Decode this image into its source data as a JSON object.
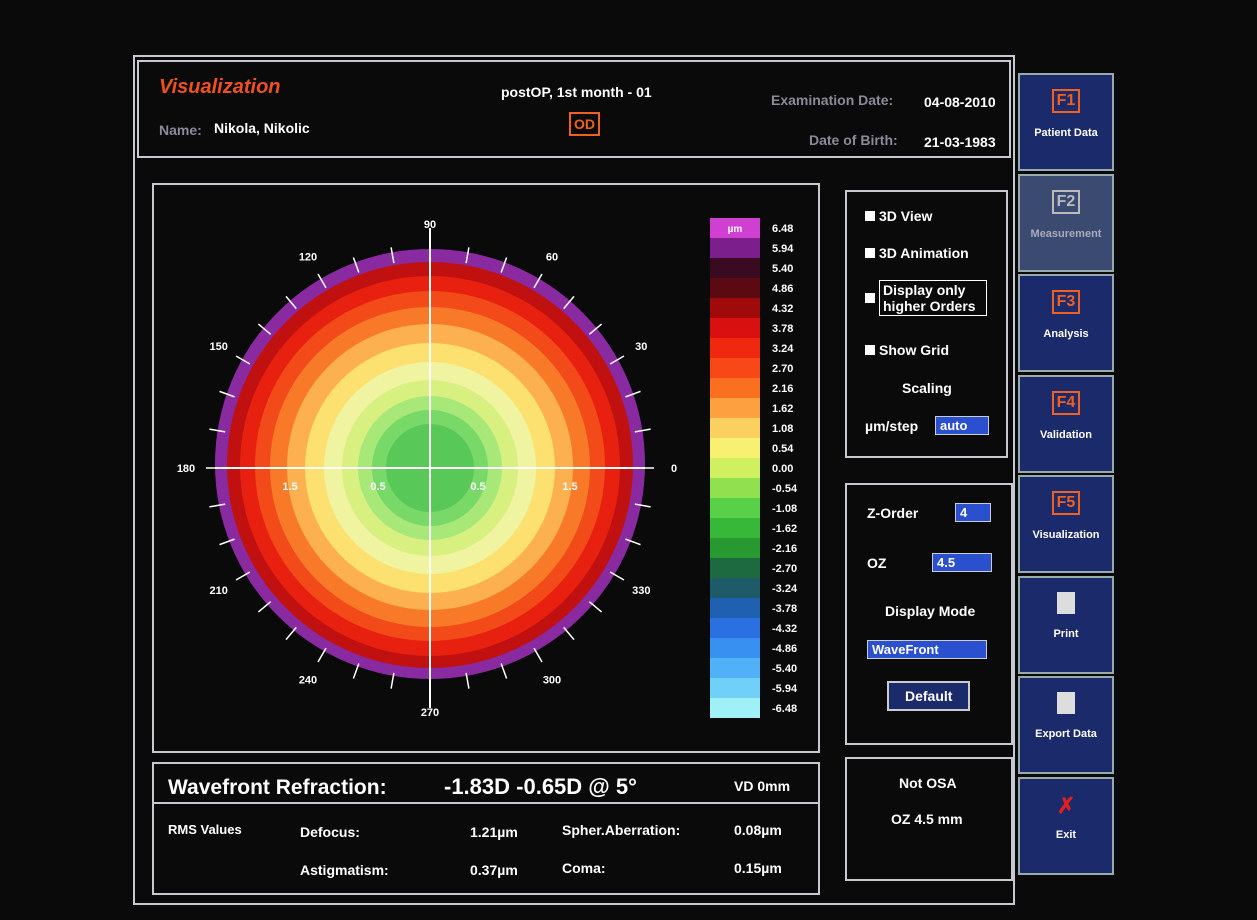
{
  "header": {
    "title": "Visualization",
    "name_label": "Name:",
    "name": "Nikola, Nikolic",
    "session": "postOP, 1st month - 01",
    "eye": "OD",
    "exam_label": "Examination Date:",
    "exam_date": "04-08-2010",
    "dob_label": "Date of Birth:",
    "dob": "21-03-1983"
  },
  "sidebar": [
    {
      "key": "F1",
      "label": "Patient Data"
    },
    {
      "key": "F2",
      "label": "Measurement"
    },
    {
      "key": "F3",
      "label": "Analysis"
    },
    {
      "key": "F4",
      "label": "Validation"
    },
    {
      "key": "F5",
      "label": "Visualization"
    },
    {
      "label": "Print"
    },
    {
      "label": "Export Data"
    },
    {
      "label": "Exit"
    }
  ],
  "map": {
    "angles": [
      "0",
      "30",
      "60",
      "90",
      "120",
      "150",
      "180",
      "210",
      "240",
      "270",
      "300",
      "330"
    ],
    "radial_labels": [
      "1.5",
      "0.5",
      "0.5",
      "1.5"
    ]
  },
  "scale": {
    "unit": "µm",
    "labels": [
      "6.48",
      "5.94",
      "5.40",
      "4.86",
      "4.32",
      "3.78",
      "3.24",
      "2.70",
      "2.16",
      "1.62",
      "1.08",
      "0.54",
      "0.00",
      "-0.54",
      "-1.08",
      "-1.62",
      "-2.16",
      "-2.70",
      "-3.24",
      "-3.78",
      "-4.32",
      "-4.86",
      "-5.40",
      "-5.94",
      "-6.48"
    ],
    "colors": [
      "#7a1f8c",
      "#3a0a20",
      "#5a0a10",
      "#a00a0a",
      "#d81010",
      "#f02810",
      "#f84818",
      "#fa7020",
      "#fca040",
      "#fcd060",
      "#f8f070",
      "#d0f060",
      "#90e050",
      "#58d048",
      "#38b838",
      "#289830",
      "#1e6a40",
      "#1e5a68",
      "#2060b0",
      "#2a70e0",
      "#3890f0",
      "#50b0f8",
      "#70d0f8",
      "#a0f0f8"
    ]
  },
  "options": {
    "view3d": "3D View",
    "anim3d": "3D Animation",
    "higher": "Display only higher Orders",
    "grid": "Show Grid",
    "scaling": "Scaling",
    "step_label": "µm/step",
    "step_value": "auto"
  },
  "controls": {
    "zorder_label": "Z-Order",
    "zorder": "4",
    "oz_label": "OZ",
    "oz": "4.5",
    "mode_label": "Display Mode",
    "mode": "WaveFront",
    "default": "Default"
  },
  "info": {
    "osa": "Not OSA",
    "oz": "OZ 4.5 mm"
  },
  "results": {
    "title": "Wavefront Refraction:",
    "refraction": "-1.83D  -0.65D @ 5°",
    "vd": "VD 0mm",
    "rms": "RMS Values",
    "defocus_label": "Defocus:",
    "defocus": "1.21µm",
    "spher_label": "Spher.Aberration:",
    "spher": "0.08µm",
    "astig_label": "Astigmatism:",
    "astig": "0.37µm",
    "coma_label": "Coma:",
    "coma": "0.15µm"
  }
}
